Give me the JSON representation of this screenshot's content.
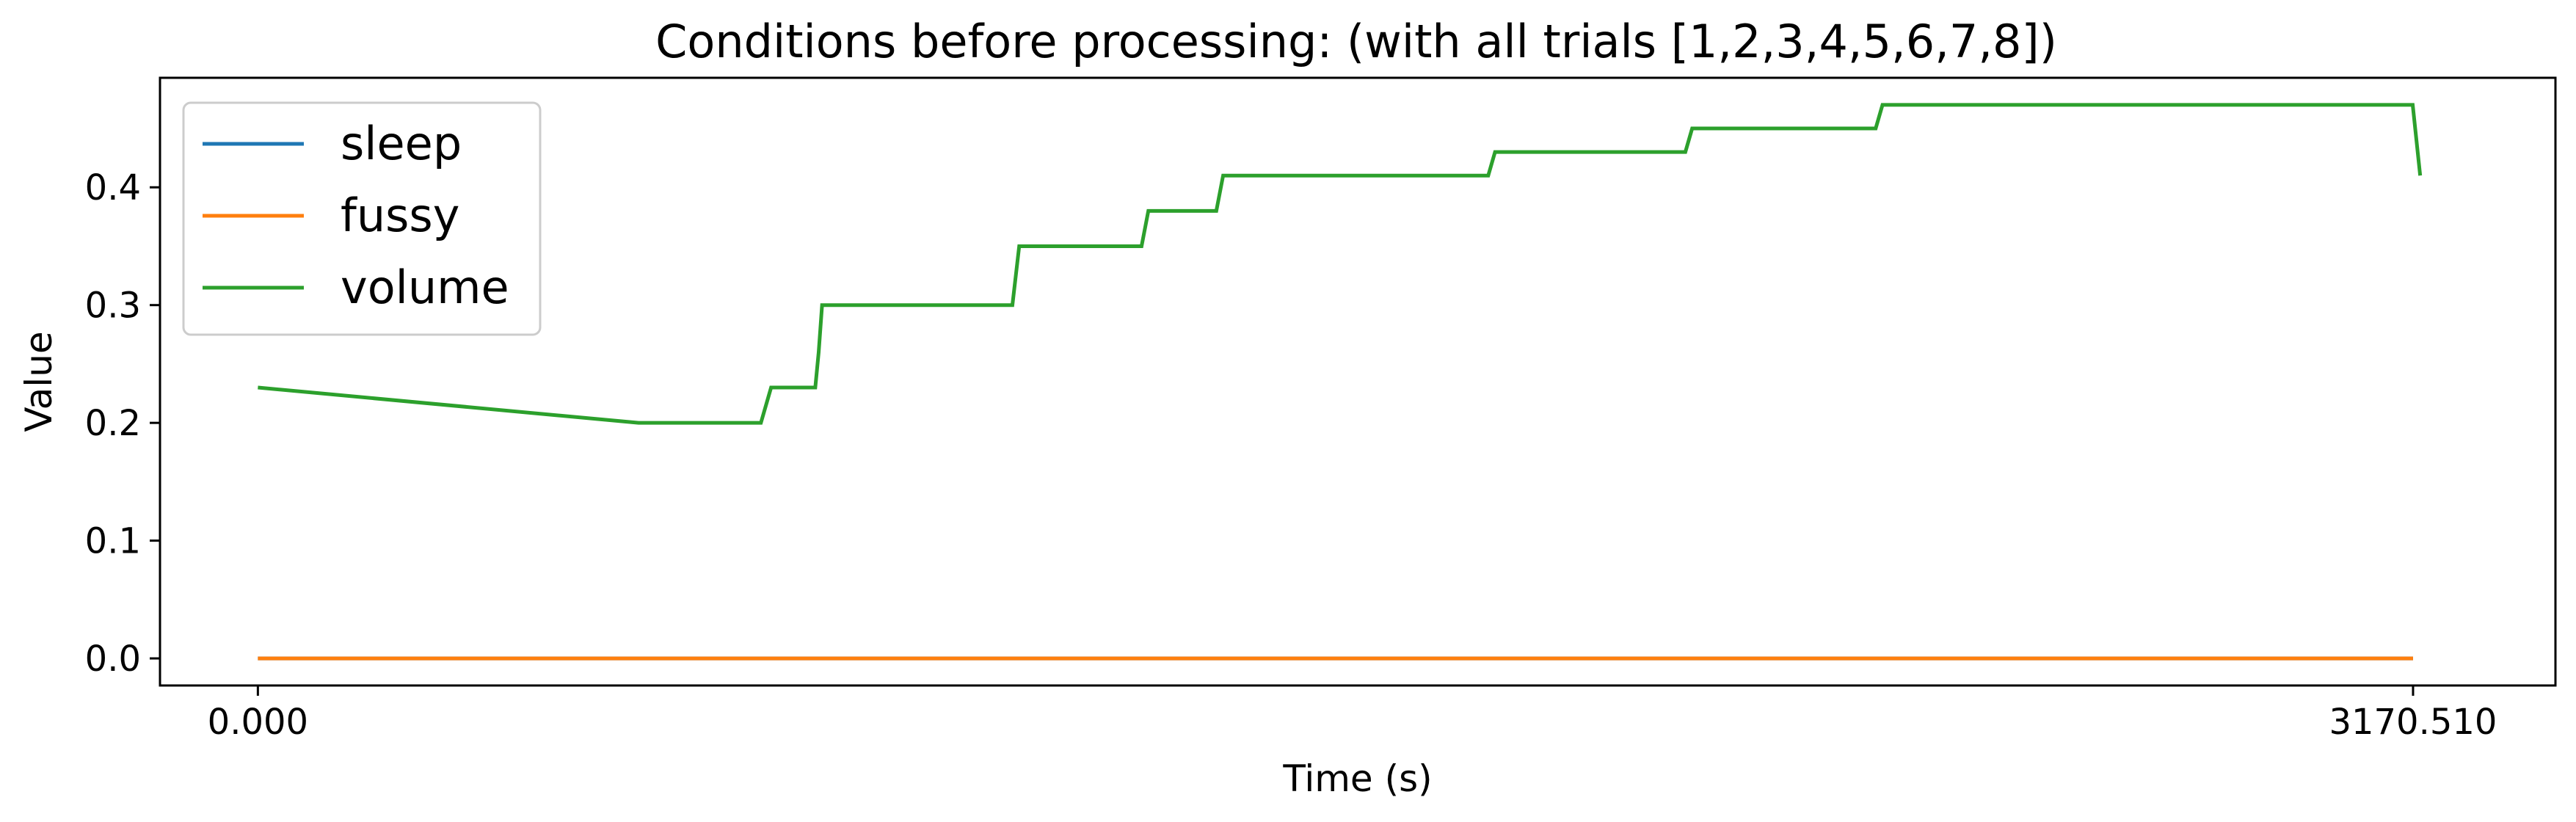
{
  "chart_data": {
    "type": "line",
    "title": "Conditions before processing: (with all trials [1,2,3,4,5,6,7,8])",
    "xlabel": "Time (s)",
    "ylabel": "Value",
    "xlim": [
      -144,
      3380
    ],
    "ylim": [
      -0.023,
      0.493
    ],
    "xticks": [
      0,
      3170.51
    ],
    "xtick_labels": [
      "0.000",
      "3170.510"
    ],
    "yticks": [
      0.0,
      0.1,
      0.2,
      0.3,
      0.4
    ],
    "ytick_labels": [
      "0.0",
      "0.1",
      "0.2",
      "0.3",
      "0.4"
    ],
    "grid": false,
    "legend_position": "top-left",
    "series": [
      {
        "name": "sleep",
        "color": "#1f77b4",
        "x": [
          0,
          3170.51
        ],
        "y": [
          0.0,
          0.0
        ]
      },
      {
        "name": "fussy",
        "color": "#ff7f0e",
        "x": [
          0,
          3170.51
        ],
        "y": [
          0.0,
          0.0
        ]
      },
      {
        "name": "volume",
        "color": "#2ca02c",
        "x": [
          0,
          560,
          740,
          755,
          820,
          825,
          830,
          1110,
          1120,
          1300,
          1310,
          1410,
          1420,
          1810,
          1820,
          2100,
          2110,
          2380,
          2390,
          3170,
          3181
        ],
        "y": [
          0.23,
          0.2,
          0.2,
          0.23,
          0.23,
          0.26,
          0.3,
          0.3,
          0.35,
          0.35,
          0.38,
          0.38,
          0.41,
          0.41,
          0.43,
          0.43,
          0.45,
          0.45,
          0.47,
          0.47,
          0.41
        ]
      }
    ]
  }
}
